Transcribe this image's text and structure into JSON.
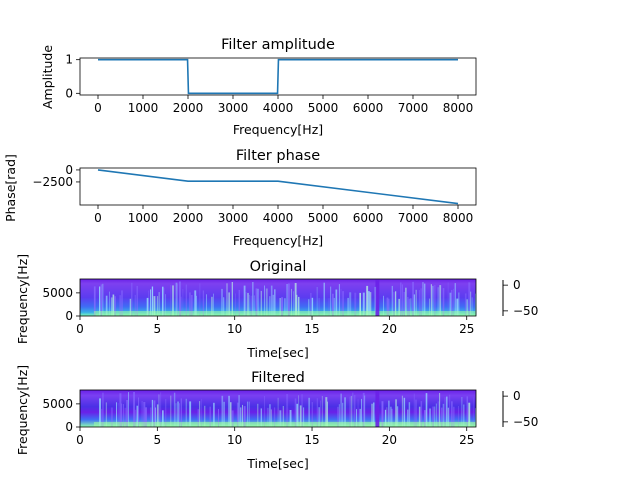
{
  "chart_data": [
    {
      "type": "line",
      "title": "Filter amplitude",
      "xlabel": "Frequency[Hz]",
      "ylabel": "Amplitude",
      "xlim": [
        -400,
        8400
      ],
      "ylim": [
        -0.05,
        1.05
      ],
      "x_ticks": [
        0,
        1000,
        2000,
        3000,
        4000,
        5000,
        6000,
        7000,
        8000
      ],
      "x_tick_labels": [
        "0",
        "1000",
        "2000",
        "3000",
        "4000",
        "5000",
        "6000",
        "7000",
        "8000"
      ],
      "y_ticks": [
        0,
        1
      ],
      "y_tick_labels": [
        "0",
        "1"
      ],
      "grid": false,
      "series": [
        {
          "color": "#1f77b4",
          "x": [
            0,
            1990,
            2010,
            3990,
            4010,
            8000
          ],
          "y": [
            1,
            1,
            0,
            0,
            1,
            1
          ]
        }
      ]
    },
    {
      "type": "line",
      "title": "Filter phase",
      "xlabel": "Frequency[Hz]",
      "ylabel": "Phase[rad]",
      "xlim": [
        -400,
        8400
      ],
      "ylim": [
        -7300,
        400
      ],
      "x_ticks": [
        0,
        1000,
        2000,
        3000,
        4000,
        5000,
        6000,
        7000,
        8000
      ],
      "x_tick_labels": [
        "0",
        "1000",
        "2000",
        "3000",
        "4000",
        "5000",
        "6000",
        "7000",
        "8000"
      ],
      "y_ticks": [
        0,
        -2500
      ],
      "y_tick_labels": [
        "0",
        "−2500"
      ],
      "grid": false,
      "series": [
        {
          "color": "#1f77b4",
          "x": [
            0,
            2000,
            4000,
            8000
          ],
          "y": [
            0,
            -2350,
            -2350,
            -7000
          ]
        }
      ]
    },
    {
      "type": "heatmap",
      "title": "Original",
      "xlabel": "Time[sec]",
      "ylabel": "Frequency[Hz]",
      "xlim": [
        0,
        25.6
      ],
      "ylim": [
        0,
        8000
      ],
      "x_ticks": [
        0,
        5,
        10,
        15,
        20,
        25
      ],
      "x_tick_labels": [
        "0",
        "5",
        "10",
        "15",
        "20",
        "25"
      ],
      "y_ticks": [
        0,
        5000
      ],
      "y_tick_labels": [
        "0",
        "5000"
      ],
      "colorbar_ticks": [
        0,
        -50
      ],
      "colorbar_tick_labels": [
        "0",
        "−50"
      ],
      "colormap": "rainbow"
    },
    {
      "type": "heatmap",
      "title": "Filtered",
      "xlabel": "Time[sec]",
      "ylabel": "Frequency[Hz]",
      "xlim": [
        0,
        25.6
      ],
      "ylim": [
        0,
        8000
      ],
      "x_ticks": [
        0,
        5,
        10,
        15,
        20,
        25
      ],
      "x_tick_labels": [
        "0",
        "5",
        "10",
        "15",
        "20",
        "25"
      ],
      "y_ticks": [
        0,
        5000
      ],
      "y_tick_labels": [
        "0",
        "5000"
      ],
      "colorbar_ticks": [
        0,
        -50
      ],
      "colorbar_tick_labels": [
        "0",
        "−50"
      ],
      "colormap": "rainbow"
    }
  ]
}
